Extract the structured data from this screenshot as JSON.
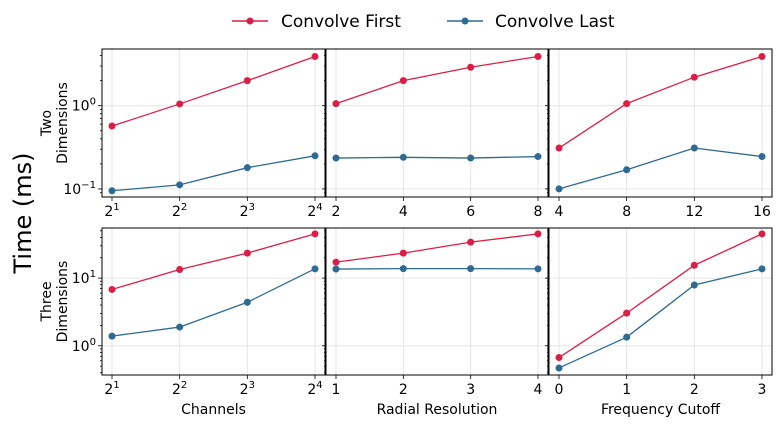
{
  "colors": {
    "Convolve First": "#dc1e46",
    "Convolve Last": "#2e6a92"
  },
  "chart_data": {
    "type": "line",
    "ylabel": "Time (ms)",
    "yscale": "log",
    "grid": true,
    "legend_position": "top-center",
    "legend": [
      "Convolve First",
      "Convolve Last"
    ],
    "rows": [
      {
        "label": [
          "Two",
          "Dimensions"
        ],
        "ylim": [
          0.08,
          4.8
        ],
        "yticks": [
          {
            "v": 1,
            "base": "10",
            "exp": "0"
          },
          {
            "v": 0.1,
            "base": "10",
            "exp": "−1"
          }
        ]
      },
      {
        "label": [
          "Three",
          "Dimensions"
        ],
        "ylim": [
          0.37,
          55
        ],
        "yticks": [
          {
            "v": 10,
            "base": "10",
            "exp": "1"
          },
          {
            "v": 1,
            "base": "10",
            "exp": "0"
          }
        ]
      }
    ],
    "columns": [
      {
        "xlabel": "Channels",
        "x": [
          1,
          2,
          3,
          4
        ],
        "xticklabels": [
          {
            "base": "2",
            "exp": "1"
          },
          {
            "base": "2",
            "exp": "2"
          },
          {
            "base": "2",
            "exp": "3"
          },
          {
            "base": "2",
            "exp": "4"
          }
        ]
      },
      {
        "xlabel": "Radial Resolution",
        "x_top": [
          2,
          4,
          6,
          8
        ],
        "x_bottom": [
          1,
          2,
          3,
          4
        ]
      },
      {
        "xlabel": "Frequency Cutoff",
        "x_top": [
          4,
          8,
          12,
          16
        ],
        "x_bottom": [
          0,
          1,
          2,
          3
        ]
      }
    ],
    "panels": [
      {
        "row": 0,
        "col": 0,
        "series": [
          {
            "name": "Convolve First",
            "values": [
              0.57,
              1.05,
              2.0,
              3.9
            ]
          },
          {
            "name": "Convolve Last",
            "values": [
              0.095,
              0.112,
              0.18,
              0.25
            ]
          }
        ]
      },
      {
        "row": 0,
        "col": 1,
        "series": [
          {
            "name": "Convolve First",
            "values": [
              1.06,
              2.0,
              2.9,
              3.9
            ]
          },
          {
            "name": "Convolve Last",
            "values": [
              0.235,
              0.24,
              0.235,
              0.245
            ]
          }
        ]
      },
      {
        "row": 0,
        "col": 2,
        "series": [
          {
            "name": "Convolve First",
            "values": [
              0.31,
              1.06,
              2.2,
              3.9
            ]
          },
          {
            "name": "Convolve Last",
            "values": [
              0.1,
              0.17,
              0.31,
              0.245
            ]
          }
        ]
      },
      {
        "row": 1,
        "col": 0,
        "series": [
          {
            "name": "Convolve First",
            "values": [
              6.8,
              13.4,
              23.4,
              45
            ]
          },
          {
            "name": "Convolve Last",
            "values": [
              1.39,
              1.89,
              4.4,
              13.7
            ]
          }
        ]
      },
      {
        "row": 1,
        "col": 1,
        "series": [
          {
            "name": "Convolve First",
            "values": [
              17.2,
              23.4,
              34,
              45
            ]
          },
          {
            "name": "Convolve Last",
            "values": [
              13.6,
              13.8,
              13.8,
              13.7
            ]
          }
        ]
      },
      {
        "row": 1,
        "col": 2,
        "series": [
          {
            "name": "Convolve First",
            "values": [
              0.67,
              3.04,
              15.5,
              45
            ]
          },
          {
            "name": "Convolve Last",
            "values": [
              0.47,
              1.34,
              7.9,
              13.7
            ]
          }
        ]
      }
    ]
  }
}
